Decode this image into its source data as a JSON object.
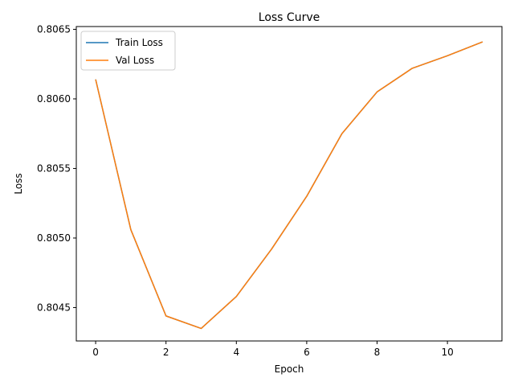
{
  "chart_data": {
    "type": "line",
    "title": "Loss Curve",
    "xlabel": "Epoch",
    "ylabel": "Loss",
    "xlim": [
      -0.55,
      11.55
    ],
    "ylim": [
      0.80426,
      0.80652
    ],
    "xticks": [
      0,
      2,
      4,
      6,
      8,
      10
    ],
    "xtick_labels": [
      "0",
      "2",
      "4",
      "6",
      "8",
      "10"
    ],
    "yticks": [
      0.8045,
      0.805,
      0.8055,
      0.806,
      0.8065
    ],
    "ytick_labels": [
      "0.8045",
      "0.8050",
      "0.8055",
      "0.8060",
      "0.8065"
    ],
    "grid": false,
    "legend_position": "top-left",
    "x": [
      0,
      1,
      2,
      3,
      4,
      5,
      6,
      7,
      8,
      9,
      10,
      11
    ],
    "series": [
      {
        "name": "Train Loss",
        "color": "#1f77b4",
        "values": [
          0.80614,
          0.80506,
          0.80444,
          0.80435,
          0.80458,
          0.80492,
          0.8053,
          0.80575,
          0.80605,
          0.80622,
          0.80631,
          0.80641
        ]
      },
      {
        "name": "Val Loss",
        "color": "#ff7f0e",
        "values": [
          0.80614,
          0.80506,
          0.80444,
          0.80435,
          0.80458,
          0.80492,
          0.8053,
          0.80575,
          0.80605,
          0.80622,
          0.80631,
          0.80641
        ]
      }
    ]
  }
}
